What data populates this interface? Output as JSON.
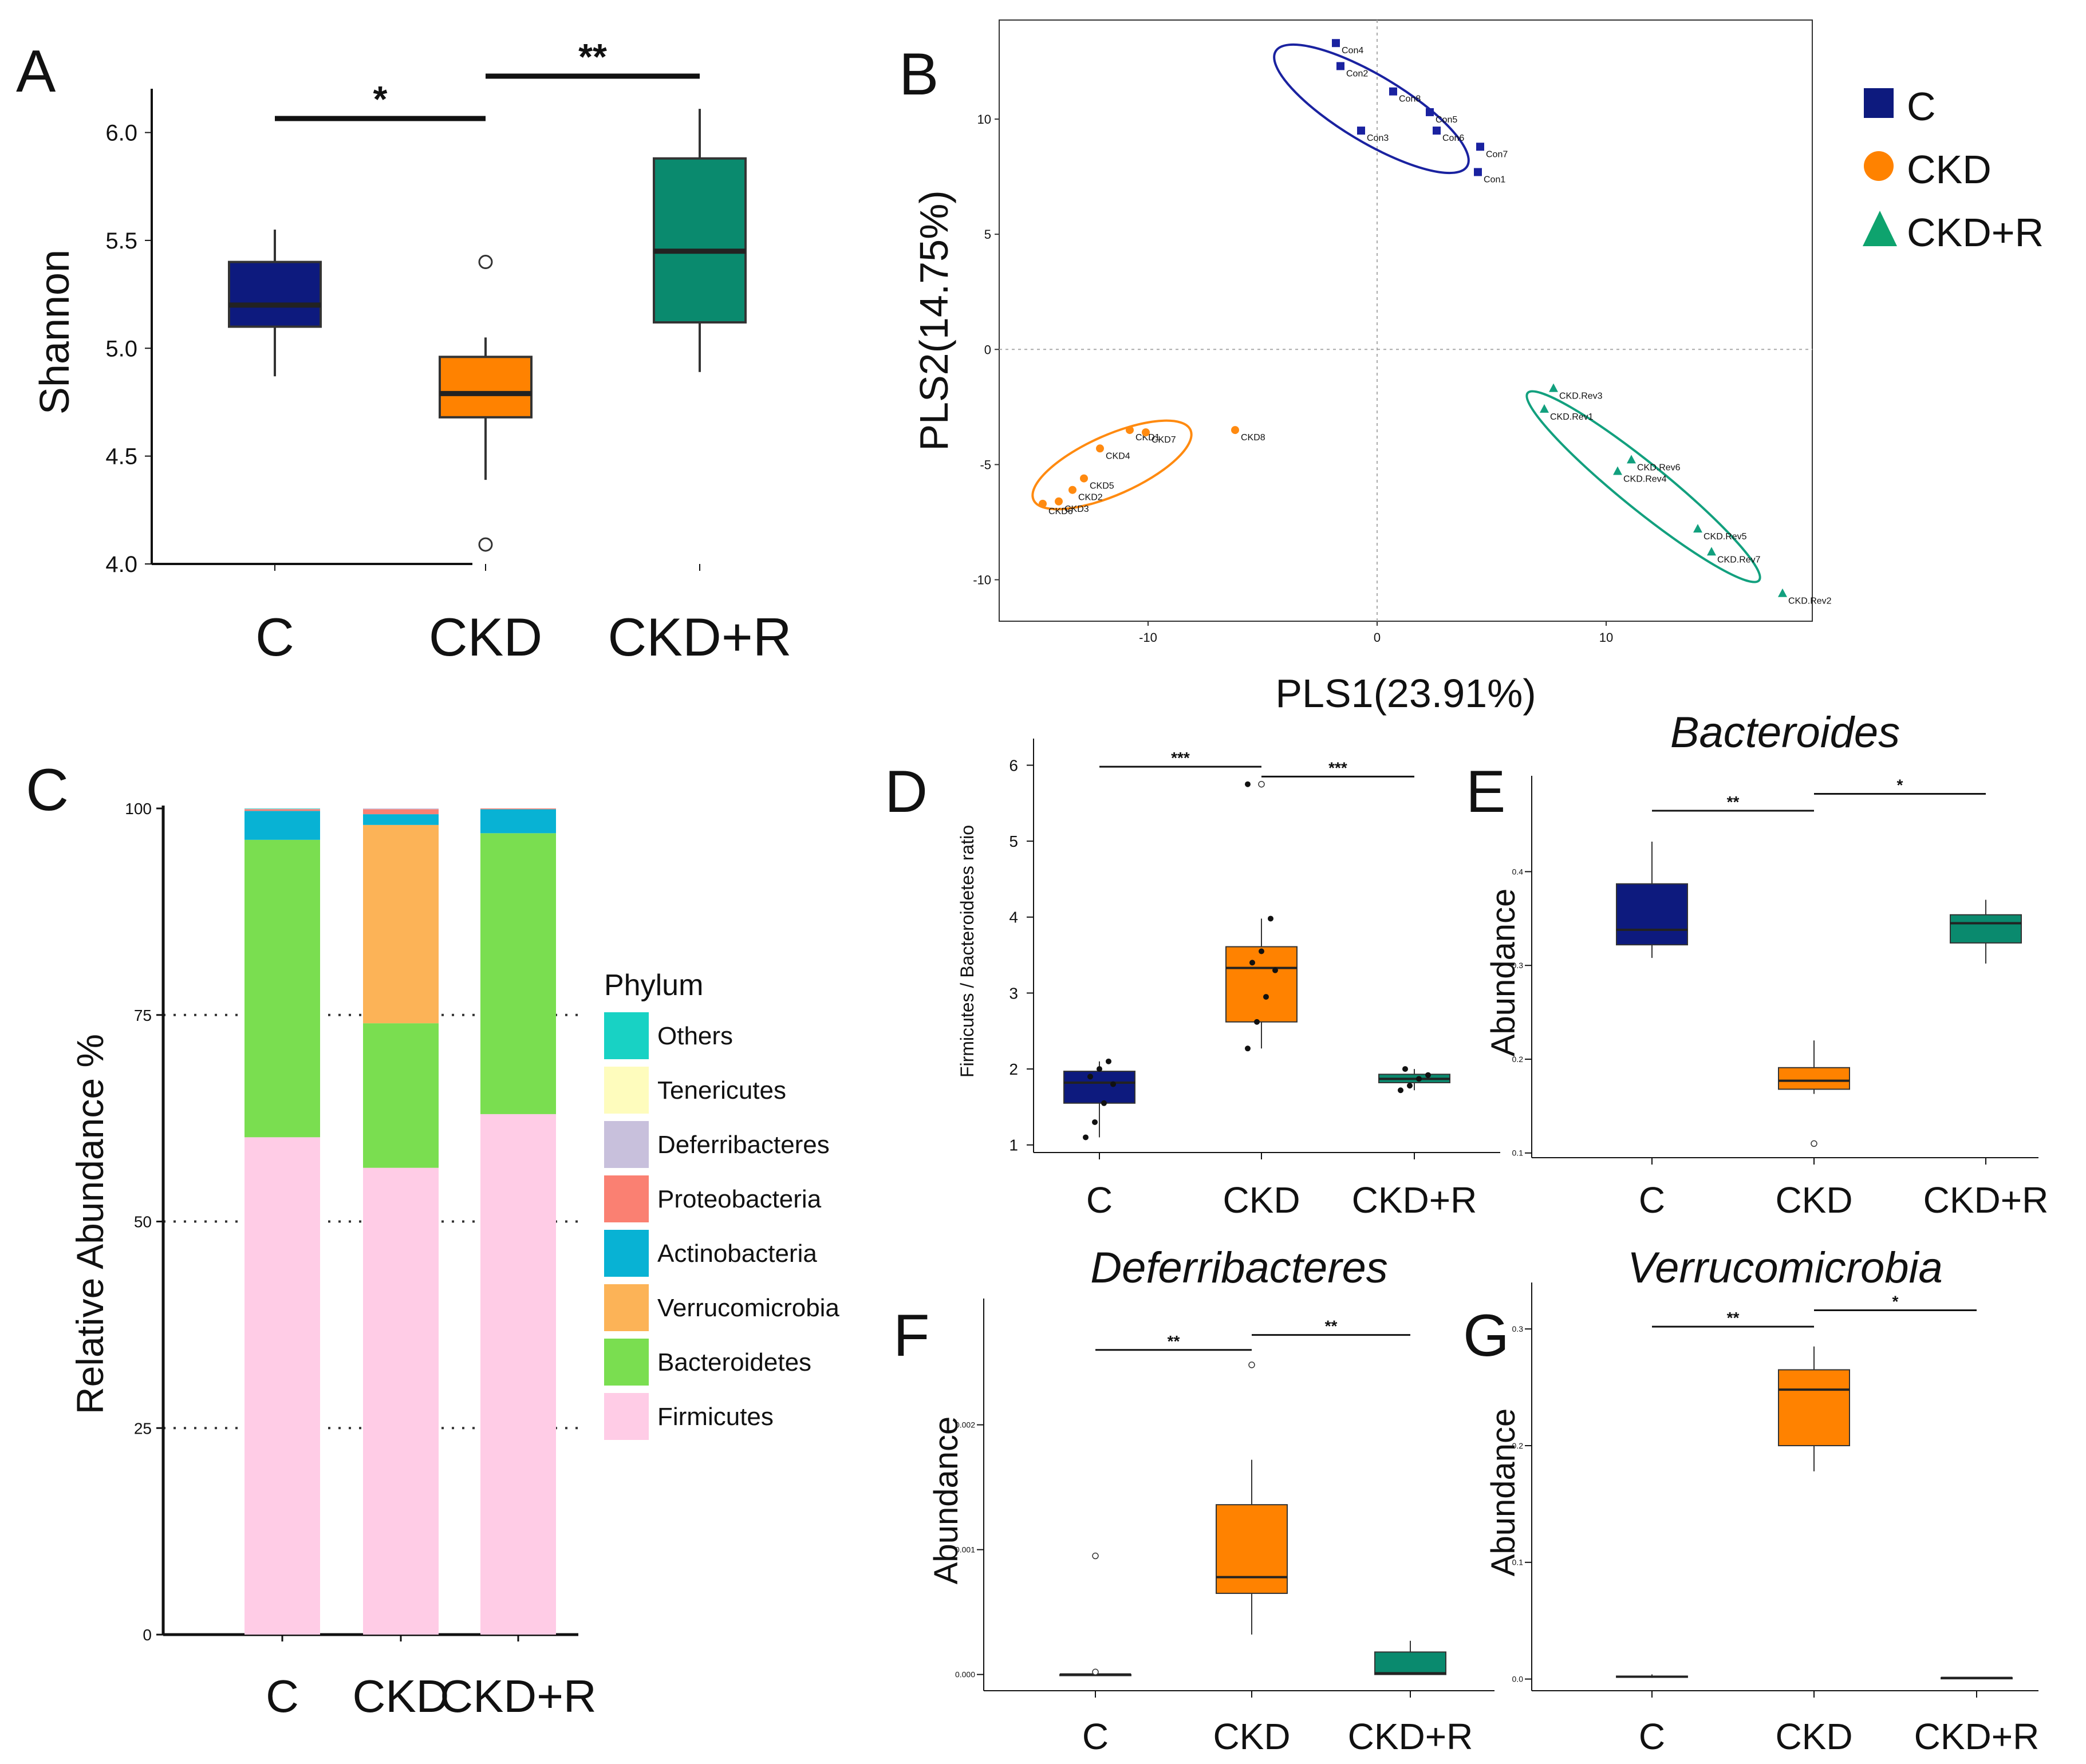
{
  "colors": {
    "C": "#0d1a7e",
    "CKD": "#ff8200",
    "CKD+R": "#0a8a6e",
    "scatter_C": "#1a22a0",
    "scatter_CKD": "#ff8a10",
    "scatter_R": "#12a07e"
  },
  "chart_data": [
    {
      "id": "A",
      "panel_letter": "A",
      "type": "box",
      "title": "",
      "xlabel": "",
      "ylabel": "Shannon",
      "ylim": [
        4.0,
        6.15
      ],
      "yticks": [
        4.0,
        4.5,
        5.0,
        5.5,
        6.0
      ],
      "ytick_labels": [
        "4.0",
        "4.5",
        "5.0",
        "5.5",
        "6.0"
      ],
      "categories": [
        "C",
        "CKD",
        "CKD+R"
      ],
      "boxes": [
        {
          "group": "C",
          "min": 4.87,
          "q1": 5.1,
          "median": 5.2,
          "q3": 5.4,
          "max": 5.55,
          "outliers": []
        },
        {
          "group": "CKD",
          "min": 4.39,
          "q1": 4.68,
          "median": 4.79,
          "q3": 4.96,
          "max": 5.05,
          "outliers": [
            5.4,
            4.09
          ]
        },
        {
          "group": "CKD+R",
          "min": 4.89,
          "q1": 5.12,
          "median": 5.45,
          "q3": 5.88,
          "max": 6.11,
          "outliers": []
        }
      ],
      "significance": [
        {
          "from": 0,
          "to": 1,
          "label": "*",
          "y": 6.08
        },
        {
          "from": 1,
          "to": 2,
          "label": "**",
          "y": 6.28
        }
      ]
    },
    {
      "id": "B",
      "panel_letter": "B",
      "type": "scatter",
      "title": "",
      "xlabel": "PLS1(23.91%)",
      "ylabel": "PLS2(14.75%)",
      "xlim": [
        -16.5,
        19
      ],
      "ylim": [
        -11.8,
        14.3
      ],
      "xticks": [
        -10,
        0,
        10
      ],
      "xtick_labels": [
        "-10",
        "0",
        "10"
      ],
      "yticks": [
        -10,
        -5,
        0,
        5,
        10
      ],
      "ytick_labels": [
        "-10",
        "-5",
        "0",
        "5",
        "10"
      ],
      "legend": [
        {
          "label": "C",
          "shape": "square"
        },
        {
          "label": "CKD",
          "shape": "circle"
        },
        {
          "label": "CKD+R",
          "shape": "triangle"
        }
      ],
      "series": [
        {
          "name": "C",
          "shape": "square",
          "points": [
            {
              "label": "Con4",
              "x": -1.8,
              "y": 13.3
            },
            {
              "label": "Con2",
              "x": -1.6,
              "y": 12.3
            },
            {
              "label": "Con8",
              "x": 0.7,
              "y": 11.2
            },
            {
              "label": "Con5",
              "x": 2.3,
              "y": 10.3
            },
            {
              "label": "Con6",
              "x": 2.6,
              "y": 9.5
            },
            {
              "label": "Con3",
              "x": -0.7,
              "y": 9.5
            },
            {
              "label": "Con7",
              "x": 4.5,
              "y": 8.8
            },
            {
              "label": "Con1",
              "x": 4.4,
              "y": 7.7
            }
          ]
        },
        {
          "name": "CKD",
          "shape": "circle",
          "points": [
            {
              "label": "CKD1",
              "x": -10.8,
              "y": -3.5
            },
            {
              "label": "CKD7",
              "x": -10.1,
              "y": -3.6
            },
            {
              "label": "CKD4",
              "x": -12.1,
              "y": -4.3
            },
            {
              "label": "CKD8",
              "x": -6.2,
              "y": -3.5
            },
            {
              "label": "CKD5",
              "x": -12.8,
              "y": -5.6
            },
            {
              "label": "CKD2",
              "x": -13.3,
              "y": -6.1
            },
            {
              "label": "CKD6",
              "x": -14.6,
              "y": -6.7
            },
            {
              "label": "CKD3",
              "x": -13.9,
              "y": -6.6
            }
          ]
        },
        {
          "name": "CKD+R",
          "shape": "triangle",
          "points": [
            {
              "label": "CKD.Rev3",
              "x": 7.7,
              "y": -1.7
            },
            {
              "label": "CKD.Rev1",
              "x": 7.3,
              "y": -2.6
            },
            {
              "label": "CKD.Rev6",
              "x": 11.1,
              "y": -4.8
            },
            {
              "label": "CKD.Rev4",
              "x": 10.5,
              "y": -5.3
            },
            {
              "label": "CKD.Rev5",
              "x": 14.0,
              "y": -7.8
            },
            {
              "label": "CKD.Rev7",
              "x": 14.6,
              "y": -8.8
            },
            {
              "label": "CKD.Rev2",
              "x": 17.7,
              "y": -10.6
            }
          ]
        }
      ]
    },
    {
      "id": "C",
      "panel_letter": "C",
      "type": "stacked-bar",
      "title": "",
      "xlabel": "",
      "ylabel": "Relative Abundance %",
      "ylim": [
        0,
        100
      ],
      "yticks": [
        0,
        25,
        50,
        75,
        100
      ],
      "ytick_labels": [
        "0",
        "25",
        "50",
        "75",
        "100"
      ],
      "categories": [
        "C",
        "CKD",
        "CKD+R"
      ],
      "legend_title": "Phylum",
      "legend": [
        {
          "label": "Others",
          "color": "#18d2c4"
        },
        {
          "label": "Tenericutes",
          "color": "#fefcbd"
        },
        {
          "label": "Deferribacteres",
          "color": "#c8c0dc"
        },
        {
          "label": "Proteobacteria",
          "color": "#fa8072"
        },
        {
          "label": "Actinobacteria",
          "color": "#08b2d4"
        },
        {
          "label": "Verrucomicrobia",
          "color": "#fcb357"
        },
        {
          "label": "Bacteroidetes",
          "color": "#7ade50"
        },
        {
          "label": "Firmicutes",
          "color": "#ffcce6"
        }
      ],
      "series": [
        {
          "name": "Firmicutes",
          "values": [
            60.2,
            56.5,
            63.0
          ]
        },
        {
          "name": "Bacteroidetes",
          "values": [
            36.0,
            17.5,
            34.0
          ]
        },
        {
          "name": "Verrucomicrobia",
          "values": [
            0.0,
            24.0,
            0.0
          ]
        },
        {
          "name": "Actinobacteria",
          "values": [
            3.5,
            1.3,
            2.9
          ]
        },
        {
          "name": "Proteobacteria",
          "values": [
            0.2,
            0.6,
            0.1
          ]
        },
        {
          "name": "Deferribacteres",
          "values": [
            0.05,
            0.1,
            0.0
          ]
        },
        {
          "name": "Tenericutes",
          "values": [
            0.0,
            0.0,
            0.0
          ]
        },
        {
          "name": "Others",
          "values": [
            0.05,
            0.0,
            0.0
          ]
        }
      ]
    },
    {
      "id": "D",
      "panel_letter": "D",
      "type": "box",
      "title": "",
      "xlabel": "",
      "ylabel": "Firmicutes / Bacteroidetes ratio",
      "ylim": [
        0.9,
        6.2
      ],
      "yticks": [
        1,
        2,
        3,
        4,
        5,
        6
      ],
      "ytick_labels": [
        "1",
        "2",
        "3",
        "4",
        "5",
        "6"
      ],
      "categories": [
        "C",
        "CKD",
        "CKD+R"
      ],
      "boxes": [
        {
          "group": "C",
          "min": 1.1,
          "q1": 1.55,
          "median": 1.82,
          "q3": 1.97,
          "max": 2.1,
          "outliers": [],
          "points": [
            1.1,
            1.3,
            1.55,
            1.8,
            1.9,
            2.0,
            2.1
          ]
        },
        {
          "group": "CKD",
          "min": 2.27,
          "q1": 2.62,
          "median": 3.33,
          "q3": 3.61,
          "max": 3.98,
          "outliers": [
            5.75
          ],
          "points": [
            2.27,
            2.62,
            2.95,
            3.3,
            3.4,
            3.55,
            3.98,
            5.75
          ]
        },
        {
          "group": "CKD+R",
          "min": 1.72,
          "q1": 1.82,
          "median": 1.87,
          "q3": 1.93,
          "max": 2.0,
          "outliers": [],
          "points": [
            1.72,
            1.78,
            1.87,
            1.92,
            2.0
          ]
        }
      ],
      "significance": [
        {
          "from": 0,
          "to": 1,
          "label": "***",
          "y": 5.98
        },
        {
          "from": 1,
          "to": 2,
          "label": "***",
          "y": 5.85
        }
      ]
    },
    {
      "id": "E",
      "panel_letter": "E",
      "type": "box",
      "title": "Bacteroides",
      "xlabel": "",
      "ylabel": "Abundance",
      "ylim": [
        0.095,
        0.49
      ],
      "yticks": [
        0.1,
        0.2,
        0.3,
        0.4
      ],
      "ytick_labels": [
        "0.1",
        "0.2",
        "0.3",
        "0.4"
      ],
      "categories": [
        "C",
        "CKD",
        "CKD+R"
      ],
      "boxes": [
        {
          "group": "C",
          "min": 0.308,
          "q1": 0.322,
          "median": 0.338,
          "q3": 0.387,
          "max": 0.432,
          "outliers": []
        },
        {
          "group": "CKD",
          "min": 0.163,
          "q1": 0.168,
          "median": 0.177,
          "q3": 0.191,
          "max": 0.22,
          "outliers": [
            0.11
          ]
        },
        {
          "group": "CKD+R",
          "min": 0.302,
          "q1": 0.324,
          "median": 0.345,
          "q3": 0.354,
          "max": 0.37,
          "outliers": []
        }
      ],
      "significance": [
        {
          "from": 0,
          "to": 1,
          "label": "**",
          "y": 0.465
        },
        {
          "from": 1,
          "to": 2,
          "label": "*",
          "y": 0.483
        }
      ]
    },
    {
      "id": "F",
      "panel_letter": "F",
      "type": "box",
      "title": "Deferribacteres",
      "xlabel": "",
      "ylabel": "Abundance",
      "ylim": [
        -0.00013,
        0.00292
      ],
      "yticks": [
        0.0,
        0.001,
        0.002
      ],
      "ytick_labels": [
        "0.000",
        "0.001",
        "0.002"
      ],
      "categories": [
        "C",
        "CKD",
        "CKD+R"
      ],
      "boxes": [
        {
          "group": "C",
          "min": 0.0,
          "q1": 0.0,
          "median": 0.0,
          "q3": 0.0,
          "max": 0.0,
          "outliers": [
            0.00095,
            2e-05
          ]
        },
        {
          "group": "CKD",
          "min": 0.00032,
          "q1": 0.00065,
          "median": 0.00078,
          "q3": 0.00136,
          "max": 0.00172,
          "outliers": [
            0.00248
          ]
        },
        {
          "group": "CKD+R",
          "min": 0.0,
          "q1": 0.0,
          "median": 1e-05,
          "q3": 0.00018,
          "max": 0.00027,
          "outliers": []
        }
      ],
      "significance": [
        {
          "from": 0,
          "to": 1,
          "label": "**",
          "y": 0.0026
        },
        {
          "from": 1,
          "to": 2,
          "label": "**",
          "y": 0.00272
        }
      ]
    },
    {
      "id": "G",
      "panel_letter": "G",
      "type": "box",
      "title": "Verrucomicrobia",
      "xlabel": "",
      "ylabel": "Abundance",
      "ylim": [
        -0.01,
        0.33
      ],
      "yticks": [
        0.0,
        0.1,
        0.2,
        0.3
      ],
      "ytick_labels": [
        "0.0",
        "0.1",
        "0.2",
        "0.3"
      ],
      "categories": [
        "C",
        "CKD",
        "CKD+R"
      ],
      "boxes": [
        {
          "group": "C",
          "min": 0.001,
          "q1": 0.0015,
          "median": 0.002,
          "q3": 0.0025,
          "max": 0.004,
          "outliers": []
        },
        {
          "group": "CKD",
          "min": 0.178,
          "q1": 0.2,
          "median": 0.248,
          "q3": 0.265,
          "max": 0.285,
          "outliers": []
        },
        {
          "group": "CKD+R",
          "min": 0.0,
          "q1": 0.0005,
          "median": 0.001,
          "q3": 0.0012,
          "max": 0.0015,
          "outliers": []
        }
      ],
      "significance": [
        {
          "from": 0,
          "to": 1,
          "label": "**",
          "y": 0.302
        },
        {
          "from": 1,
          "to": 2,
          "label": "*",
          "y": 0.316
        }
      ]
    }
  ]
}
